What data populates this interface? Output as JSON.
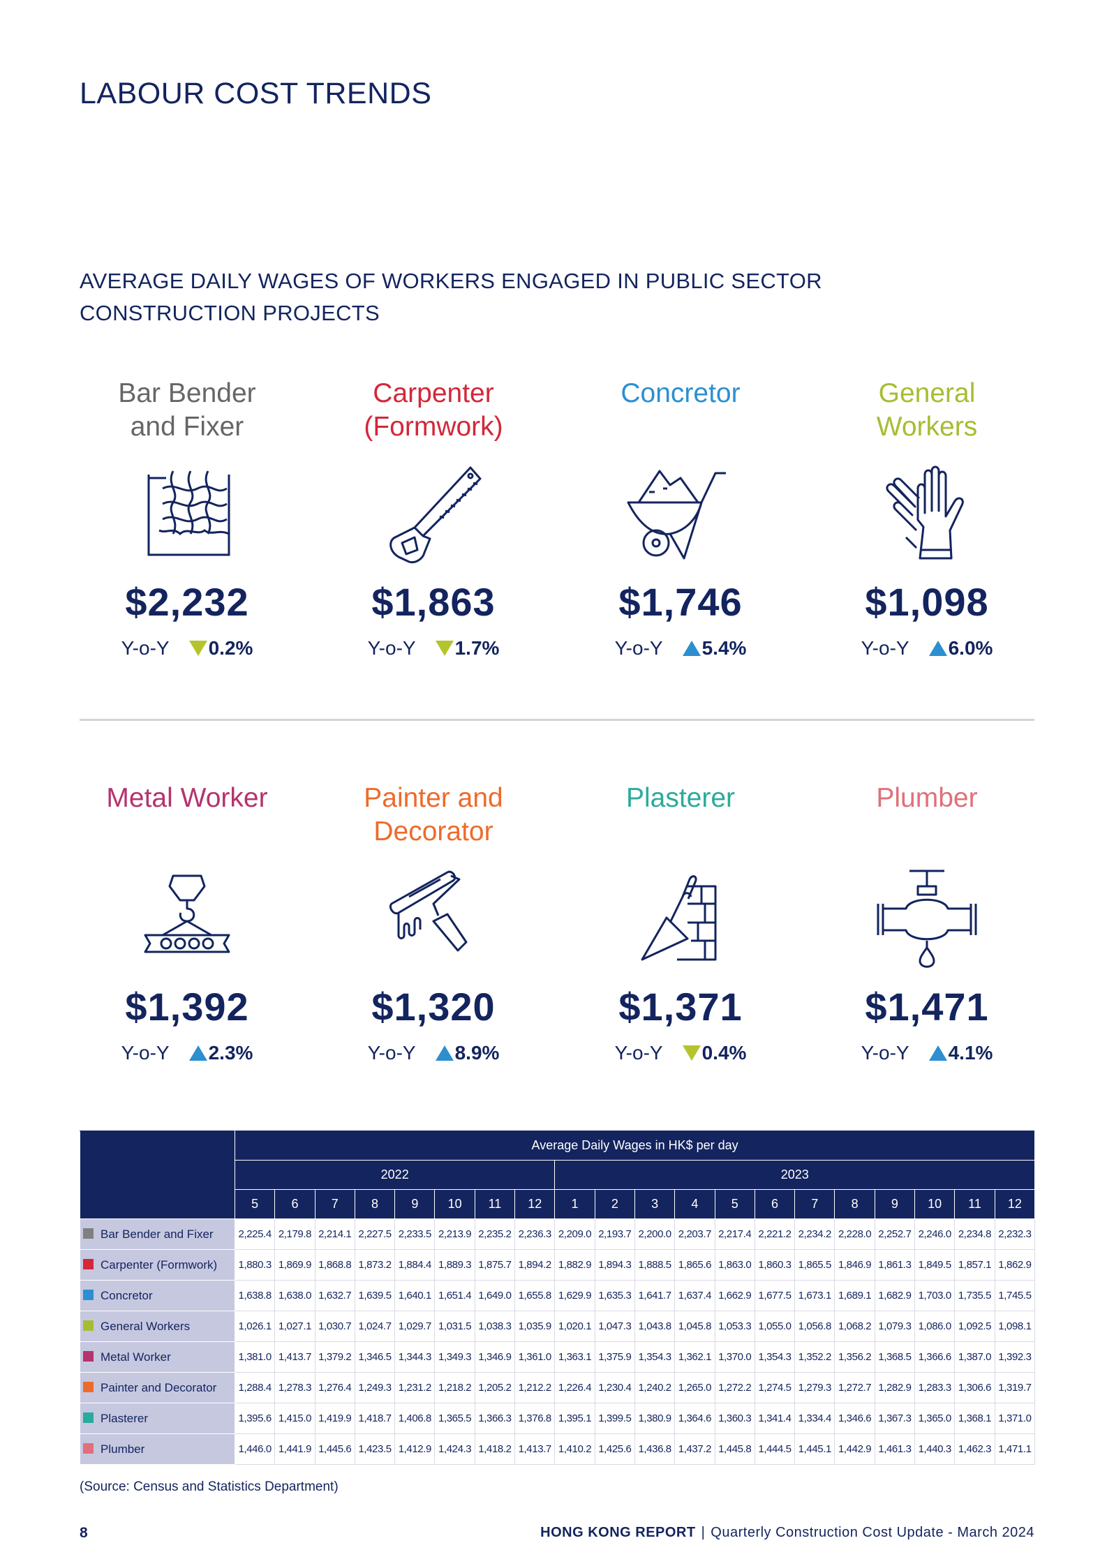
{
  "page": {
    "title": "LABOUR COST TRENDS",
    "section_title": "AVERAGE DAILY WAGES OF WORKERS ENGAGED IN PUBLIC SECTOR CONSTRUCTION PROJECTS",
    "page_number": "8",
    "footer_report": "HONG KONG REPORT",
    "footer_separator": "|",
    "footer_subtitle": "Quarterly Construction Cost Update - March 2024",
    "source": "(Source: Census and Statistics Department)"
  },
  "yoy_label": "Y-o-Y",
  "trades": [
    {
      "name": "Bar Bender and Fixer",
      "line1": "Bar Bender",
      "line2": "and Fixer",
      "color": "#666666",
      "wage": "$2,232",
      "yoy": "0.2%",
      "direction": "down",
      "icon": "rebar-mesh-icon"
    },
    {
      "name": "Carpenter (Formwork)",
      "line1": "Carpenter",
      "line2": "(Formwork)",
      "color": "#d3273a",
      "wage": "$1,863",
      "yoy": "1.7%",
      "direction": "down",
      "icon": "saw-icon"
    },
    {
      "name": "Concretor",
      "line1": "Concretor",
      "line2": "",
      "color": "#2c8fcf",
      "wage": "$1,746",
      "yoy": "5.4%",
      "direction": "up",
      "icon": "wheelbarrow-icon"
    },
    {
      "name": "General Workers",
      "line1": "General",
      "line2": "Workers",
      "color": "#a6bd32",
      "wage": "$1,098",
      "yoy": "6.0%",
      "direction": "up",
      "icon": "gloves-icon"
    },
    {
      "name": "Metal Worker",
      "line1": "Metal Worker",
      "line2": "",
      "color": "#b5336e",
      "wage": "$1,392",
      "yoy": "2.3%",
      "direction": "up",
      "icon": "crane-hook-beam-icon"
    },
    {
      "name": "Painter and Decorator",
      "line1": "Painter and",
      "line2": "Decorator",
      "color": "#ee6a2c",
      "wage": "$1,320",
      "yoy": "8.9%",
      "direction": "up",
      "icon": "paint-roller-icon"
    },
    {
      "name": "Plasterer",
      "line1": "Plasterer",
      "line2": "",
      "color": "#2aab9b",
      "wage": "$1,371",
      "yoy": "0.4%",
      "direction": "down",
      "icon": "trowel-brick-icon"
    },
    {
      "name": "Plumber",
      "line1": "Plumber",
      "line2": "",
      "color": "#e0707a",
      "wage": "$1,471",
      "yoy": "4.1%",
      "direction": "up",
      "icon": "water-valve-icon"
    }
  ],
  "table": {
    "header": "Average Daily Wages in HK$ per day",
    "years": [
      {
        "label": "2022",
        "span": 8
      },
      {
        "label": "2023",
        "span": 12
      }
    ],
    "months": [
      "5",
      "6",
      "7",
      "8",
      "9",
      "10",
      "11",
      "12",
      "1",
      "2",
      "3",
      "4",
      "5",
      "6",
      "7",
      "8",
      "9",
      "10",
      "11",
      "12"
    ],
    "rows": [
      {
        "name": "Bar Bender and Fixer",
        "color": "#808080",
        "values": [
          "2,225.4",
          "2,179.8",
          "2,214.1",
          "2,227.5",
          "2,233.5",
          "2,213.9",
          "2,235.2",
          "2,236.3",
          "2,209.0",
          "2,193.7",
          "2,200.0",
          "2,203.7",
          "2,217.4",
          "2,221.2",
          "2,234.2",
          "2,228.0",
          "2,252.7",
          "2,246.0",
          "2,234.8",
          "2,232.3"
        ]
      },
      {
        "name": "Carpenter (Formwork)",
        "color": "#d3273a",
        "values": [
          "1,880.3",
          "1,869.9",
          "1,868.8",
          "1,873.2",
          "1,884.4",
          "1,889.3",
          "1,875.7",
          "1,894.2",
          "1,882.9",
          "1,894.3",
          "1,888.5",
          "1,865.6",
          "1,863.0",
          "1,860.3",
          "1,865.5",
          "1,846.9",
          "1,861.3",
          "1,849.5",
          "1,857.1",
          "1,862.9"
        ]
      },
      {
        "name": "Concretor",
        "color": "#2c8fcf",
        "values": [
          "1,638.8",
          "1,638.0",
          "1,632.7",
          "1,639.5",
          "1,640.1",
          "1,651.4",
          "1,649.0",
          "1,655.8",
          "1,629.9",
          "1,635.3",
          "1,641.7",
          "1,637.4",
          "1,662.9",
          "1,677.5",
          "1,673.1",
          "1,689.1",
          "1,682.9",
          "1,703.0",
          "1,735.5",
          "1,745.5"
        ]
      },
      {
        "name": "General Workers",
        "color": "#a6bd32",
        "values": [
          "1,026.1",
          "1,027.1",
          "1,030.7",
          "1,024.7",
          "1,029.7",
          "1,031.5",
          "1,038.3",
          "1,035.9",
          "1,020.1",
          "1,047.3",
          "1,043.8",
          "1,045.8",
          "1,053.3",
          "1,055.0",
          "1,056.8",
          "1,068.2",
          "1,079.3",
          "1,086.0",
          "1,092.5",
          "1,098.1"
        ]
      },
      {
        "name": "Metal Worker",
        "color": "#b5336e",
        "values": [
          "1,381.0",
          "1,413.7",
          "1,379.2",
          "1,346.5",
          "1,344.3",
          "1,349.3",
          "1,346.9",
          "1,361.0",
          "1,363.1",
          "1,375.9",
          "1,354.3",
          "1,362.1",
          "1,370.0",
          "1,354.3",
          "1,352.2",
          "1,356.2",
          "1,368.5",
          "1,366.6",
          "1,387.0",
          "1,392.3"
        ]
      },
      {
        "name": "Painter and Decorator",
        "color": "#ee6a2c",
        "values": [
          "1,288.4",
          "1,278.3",
          "1,276.4",
          "1,249.3",
          "1,231.2",
          "1,218.2",
          "1,205.2",
          "1,212.2",
          "1,226.4",
          "1,230.4",
          "1,240.2",
          "1,265.0",
          "1,272.2",
          "1,274.5",
          "1,279.3",
          "1,272.7",
          "1,282.9",
          "1,283.3",
          "1,306.6",
          "1,319.7"
        ]
      },
      {
        "name": "Plasterer",
        "color": "#2aab9b",
        "values": [
          "1,395.6",
          "1,415.0",
          "1,419.9",
          "1,418.7",
          "1,406.8",
          "1,365.5",
          "1,366.3",
          "1,376.8",
          "1,395.1",
          "1,399.5",
          "1,380.9",
          "1,364.6",
          "1,360.3",
          "1,341.4",
          "1,334.4",
          "1,346.6",
          "1,367.3",
          "1,365.0",
          "1,368.1",
          "1,371.0"
        ]
      },
      {
        "name": "Plumber",
        "color": "#e0707a",
        "values": [
          "1,446.0",
          "1,441.9",
          "1,445.6",
          "1,423.5",
          "1,412.9",
          "1,424.3",
          "1,418.2",
          "1,413.7",
          "1,410.2",
          "1,425.6",
          "1,436.8",
          "1,437.2",
          "1,445.8",
          "1,444.5",
          "1,445.1",
          "1,442.9",
          "1,461.3",
          "1,440.3",
          "1,462.3",
          "1,471.1"
        ]
      }
    ]
  }
}
